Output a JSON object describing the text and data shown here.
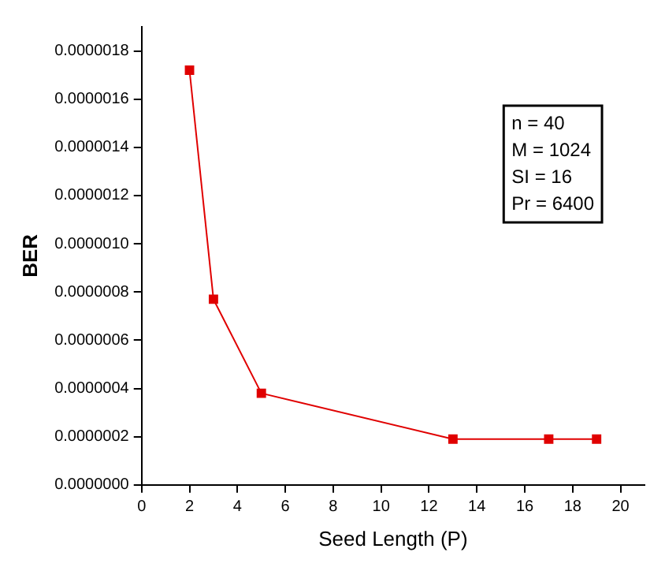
{
  "chart_data": {
    "type": "line",
    "xlabel": "Seed Length (P)",
    "ylabel": "BER",
    "x": [
      2,
      3,
      5,
      13,
      17,
      19
    ],
    "series": [
      {
        "color": "#e00000",
        "values": [
          1.72e-06,
          7.7e-07,
          3.8e-07,
          1.9e-07,
          1.9e-07,
          1.9e-07
        ]
      }
    ],
    "xlim": [
      0,
      21
    ],
    "xticks": [
      0,
      2,
      4,
      6,
      8,
      10,
      12,
      14,
      16,
      18,
      20
    ],
    "ylim": [
      0,
      1.9e-06
    ],
    "yticks": [
      {
        "value": 0,
        "label": "0.0000000"
      },
      {
        "value": 2e-07,
        "label": "0.0000002"
      },
      {
        "value": 4e-07,
        "label": "0.0000004"
      },
      {
        "value": 6e-07,
        "label": "0.0000006"
      },
      {
        "value": 8e-07,
        "label": "0.0000008"
      },
      {
        "value": 1e-06,
        "label": "0.0000010"
      },
      {
        "value": 1.2e-06,
        "label": "0.0000012"
      },
      {
        "value": 1.4e-06,
        "label": "0.0000014"
      },
      {
        "value": 1.6e-06,
        "label": "0.0000016"
      },
      {
        "value": 1.8e-06,
        "label": "0.0000018"
      }
    ],
    "grid": false,
    "legend": false,
    "marker": "square",
    "line_style": "solid",
    "annotations": [
      "n = 40",
      "M = 1024",
      "SI = 16",
      "Pr = 6400"
    ]
  }
}
